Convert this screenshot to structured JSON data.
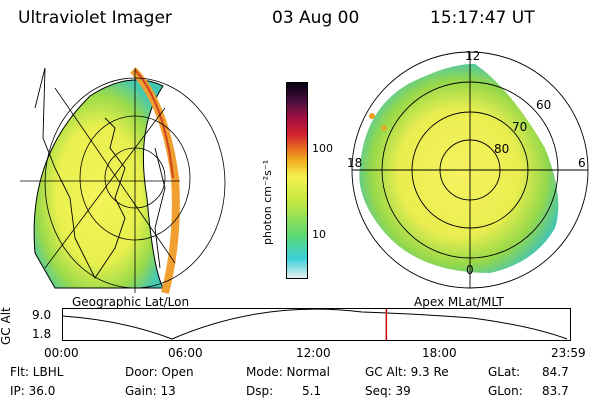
{
  "header": {
    "instrument": "Ultraviolet Imager",
    "date": "03 Aug 00",
    "time": "15:17:47 UT"
  },
  "colorbar": {
    "label": "photon cm⁻²s⁻¹",
    "ticks": [
      "100",
      "10"
    ]
  },
  "left_panel": {
    "caption": "Geographic Lat/Lon"
  },
  "right_panel": {
    "caption": "Apex MLat/MLT",
    "mlt_labels": [
      "12",
      "18",
      "6",
      "0"
    ],
    "mlat_labels": [
      "60",
      "70",
      "80"
    ]
  },
  "orbit_plot": {
    "ylabel": "GC Alt",
    "yticks": [
      "9.0",
      "1.8"
    ],
    "xticks": [
      "00:00",
      "06:00",
      "12:00",
      "18:00",
      "23:59"
    ],
    "current_time_marker_hours": 15.3
  },
  "info": {
    "flt": "Flt: LBHL",
    "ip": "IP: 36.0",
    "door": "Door: Open",
    "gain": "Gain: 13",
    "mode": "Mode: Normal",
    "dsp_label": "Dsp:",
    "dsp_value": "5.1",
    "gc_alt": "GC Alt: 9.3 Re",
    "seq": "Seq: 39",
    "glat_label": "GLat:",
    "glat_value": "84.7",
    "glon_label": "GLon:",
    "glon_value": "83.7"
  },
  "colors": {
    "accent_marker": "#cc0000",
    "oval_inner": "#f2f25a",
    "oval_outer": "#7fd24a",
    "oval_edge": "#3cc0c8"
  }
}
